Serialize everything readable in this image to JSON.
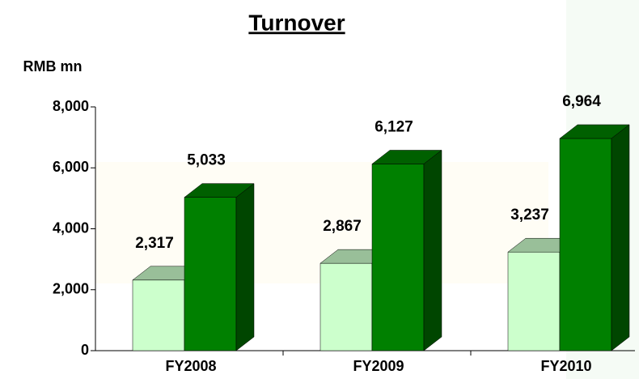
{
  "chart_data": {
    "type": "bar3d",
    "title": "Turnover",
    "y_label": "RMB mn",
    "categories": [
      "FY2008",
      "FY2009",
      "FY2010"
    ],
    "series": [
      {
        "color": "#ccffcc",
        "values": [
          2317,
          2867,
          3237
        ],
        "value_labels": [
          "2,317",
          "2,867",
          "3,237"
        ]
      },
      {
        "color": "#008000",
        "values": [
          5033,
          6127,
          6964
        ],
        "value_labels": [
          "5,033",
          "6,127",
          "6,964"
        ]
      }
    ],
    "ylim": [
      0,
      8000
    ],
    "yticks": [
      0,
      {
        "value": 2000,
        "label": "2,000"
      },
      {
        "value": 4000,
        "label": "4,000"
      },
      {
        "value": 6000,
        "label": "6,000"
      },
      {
        "value": 8000,
        "label": "8,000"
      }
    ]
  }
}
